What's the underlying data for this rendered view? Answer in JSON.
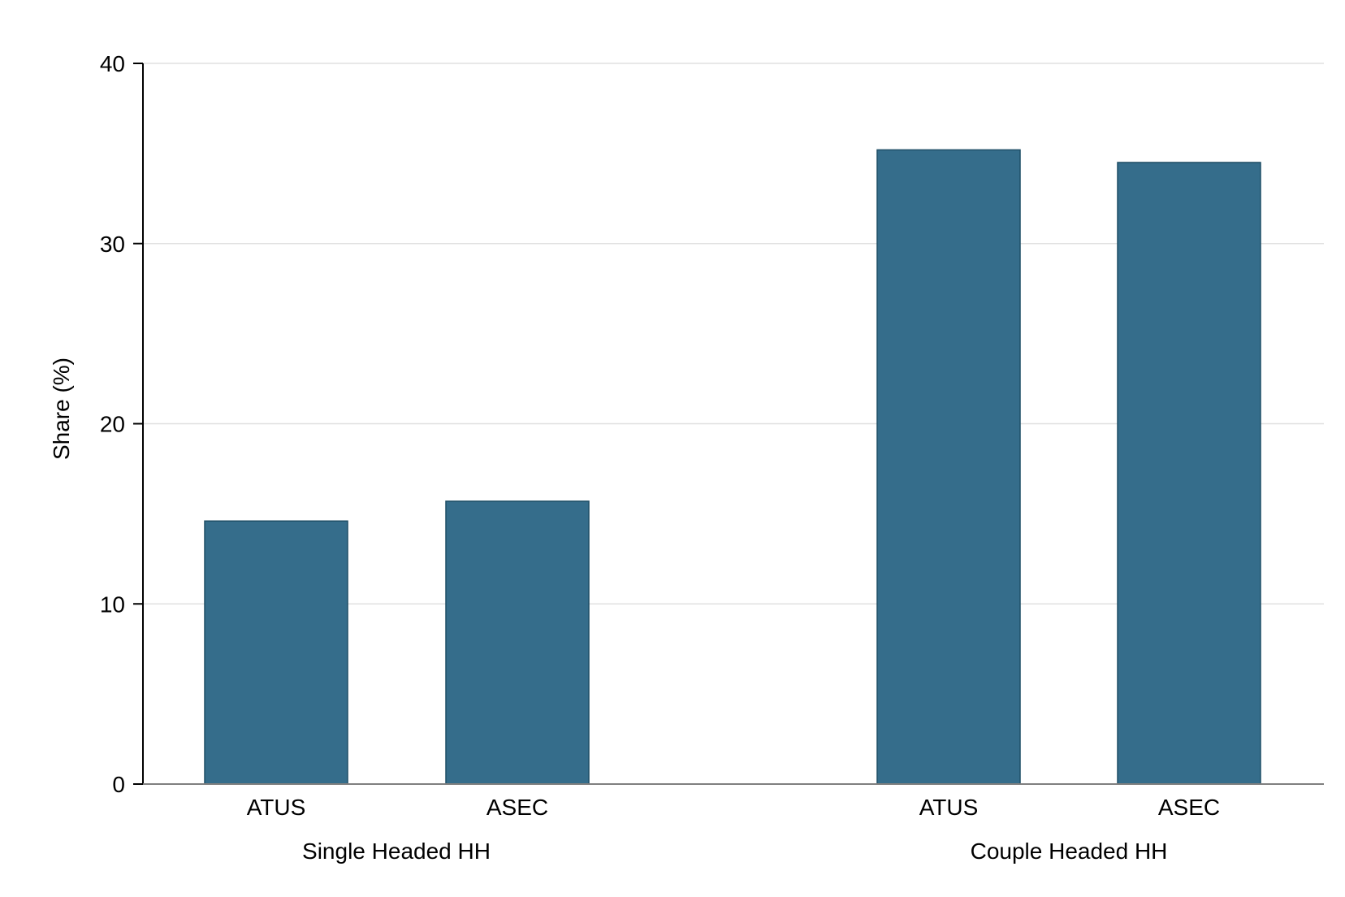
{
  "chart_data": {
    "type": "bar",
    "title": "",
    "xlabel": "",
    "ylabel": "Share (%)",
    "ylim": [
      0,
      40
    ],
    "yticks": [
      0,
      10,
      20,
      30,
      40
    ],
    "grid": true,
    "bar_color": "#356d8b",
    "groups": [
      {
        "label": "Single Headed HH",
        "categories": [
          "ATUS",
          "ASEC"
        ],
        "values": [
          14.6,
          15.7
        ]
      },
      {
        "label": "Couple Headed HH",
        "categories": [
          "ATUS",
          "ASEC"
        ],
        "values": [
          35.2,
          34.5
        ]
      }
    ]
  }
}
